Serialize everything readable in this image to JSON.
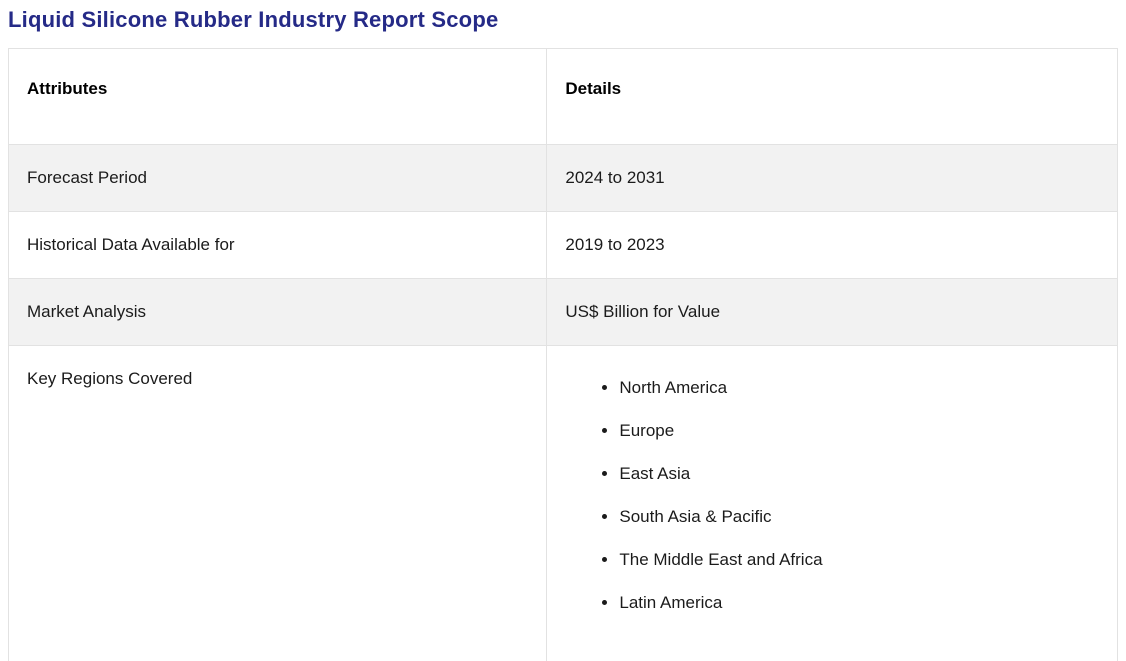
{
  "page": {
    "title": "Liquid Silicone Rubber Industry Report Scope"
  },
  "colors": {
    "title": "#252a87",
    "row_alt_background": "#f2f2f2",
    "table_border": "#e2e2e2",
    "body_text": "#1b1b1b"
  },
  "table": {
    "headers": [
      "Attributes",
      "Details"
    ],
    "rows": [
      {
        "attribute": "Forecast Period",
        "detail": "2024 to 2031"
      },
      {
        "attribute": "Historical Data Available for",
        "detail": "2019 to 2023"
      },
      {
        "attribute": "Market Analysis",
        "detail": "US$ Billion for Value"
      },
      {
        "attribute": "Key Regions Covered",
        "detail_list": [
          "North America",
          "Europe",
          "East Asia",
          "South Asia & Pacific",
          "The Middle East and Africa",
          "Latin America"
        ]
      }
    ]
  }
}
